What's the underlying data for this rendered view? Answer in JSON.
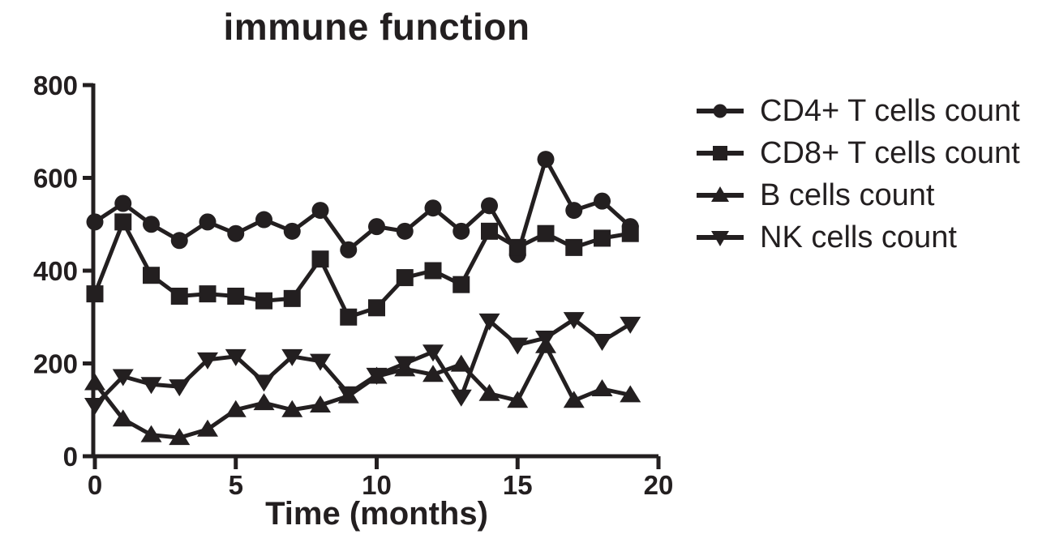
{
  "chart": {
    "title": "immune function",
    "xlabel": "Time (months)"
  },
  "chart_data": {
    "type": "line",
    "title": "immune function",
    "xlabel": "Time (months)",
    "ylabel": "",
    "x": [
      0,
      1,
      2,
      3,
      4,
      5,
      6,
      7,
      8,
      9,
      10,
      11,
      12,
      13,
      14,
      15,
      16,
      17,
      18,
      19
    ],
    "series": [
      {
        "name": "CD4+ T cells count",
        "marker": "circle",
        "marker_icon": "circle-marker-icon",
        "values": [
          505,
          545,
          500,
          465,
          505,
          480,
          510,
          485,
          530,
          445,
          495,
          485,
          535,
          485,
          540,
          435,
          640,
          530,
          550,
          495
        ]
      },
      {
        "name": "CD8+ T cells count",
        "marker": "square",
        "marker_icon": "square-marker-icon",
        "values": [
          350,
          505,
          390,
          345,
          350,
          345,
          335,
          340,
          425,
          300,
          320,
          385,
          400,
          370,
          485,
          450,
          480,
          450,
          470,
          480
        ]
      },
      {
        "name": "B cells count",
        "marker": "triangle-up",
        "marker_icon": "triangle-up-marker-icon",
        "values": [
          158,
          80,
          46,
          40,
          58,
          100,
          115,
          100,
          110,
          130,
          172,
          188,
          176,
          198,
          135,
          120,
          238,
          120,
          145,
          132
        ]
      },
      {
        "name": "NK cells count",
        "marker": "triangle-down",
        "marker_icon": "triangle-down-marker-icon",
        "values": [
          110,
          172,
          155,
          150,
          208,
          215,
          160,
          215,
          205,
          135,
          175,
          200,
          225,
          128,
          292,
          240,
          255,
          295,
          248,
          285
        ]
      }
    ],
    "xlim": [
      0,
      20
    ],
    "ylim": [
      0,
      800
    ],
    "xticks": [
      0,
      5,
      10,
      15,
      20
    ],
    "yticks": [
      0,
      200,
      400,
      600,
      800
    ],
    "grid": false,
    "legend_position": "right",
    "ink_color": "#231f20"
  }
}
